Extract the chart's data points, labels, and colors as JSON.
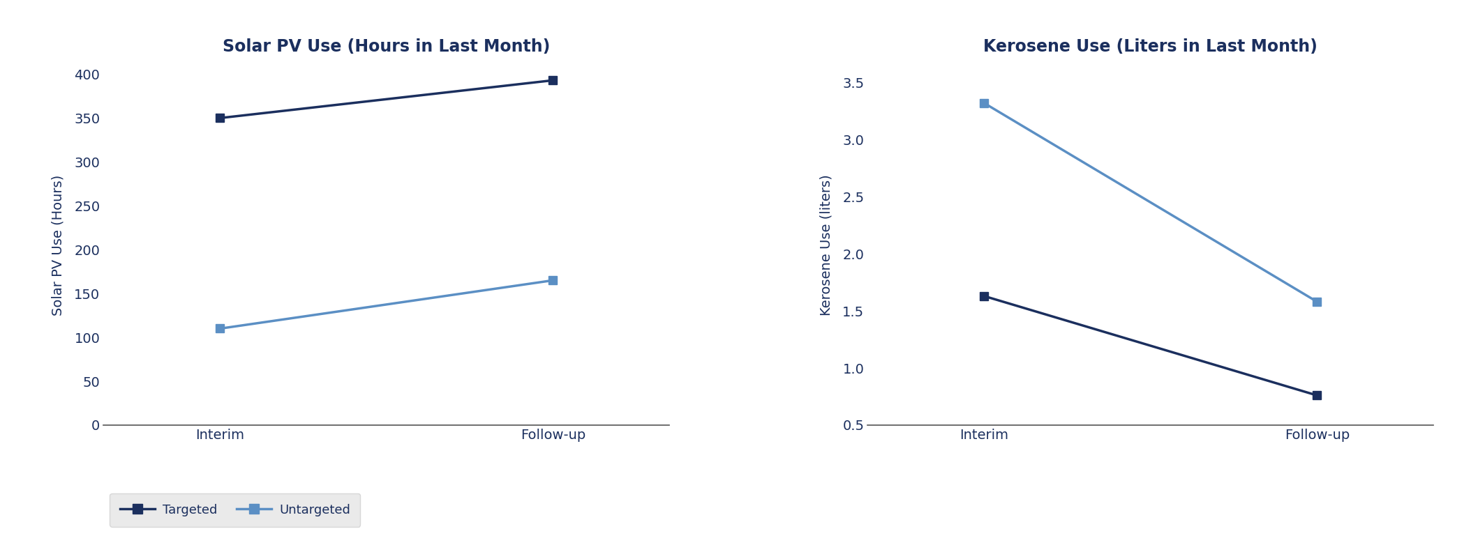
{
  "chart1_title": "Solar PV Use (Hours in Last Month)",
  "chart1_ylabel": "Solar PV Use (Hours)",
  "chart1_targeted_interim": 350,
  "chart1_targeted_followup": 393,
  "chart1_untargeted_interim": 110,
  "chart1_untargeted_followup": 165,
  "chart1_ylim": [
    0,
    410
  ],
  "chart1_yticks": [
    0,
    50,
    100,
    150,
    200,
    250,
    300,
    350,
    400
  ],
  "chart2_title": "Kerosene Use (Liters in Last Month)",
  "chart2_ylabel": "Kerosene Use (liters)",
  "chart2_targeted_interim": 1.63,
  "chart2_targeted_followup": 0.76,
  "chart2_untargeted_interim": 3.32,
  "chart2_untargeted_followup": 1.58,
  "chart2_ylim": [
    0.5,
    3.65
  ],
  "chart2_yticks": [
    0.5,
    1.0,
    1.5,
    2.0,
    2.5,
    3.0,
    3.5
  ],
  "x_labels": [
    "Interim",
    "Follow-up"
  ],
  "color_targeted": "#1b2f5e",
  "color_untargeted": "#5b8fc4",
  "color_tick": "#1b2f5e",
  "background_color": "#ffffff",
  "legend_bg": "#e5e5e5",
  "legend_edge": "#d0d0d0",
  "marker": "s",
  "markersize": 9,
  "linewidth": 2.5,
  "title_fontsize": 17,
  "label_fontsize": 14,
  "tick_fontsize": 14,
  "legend_fontsize": 13
}
